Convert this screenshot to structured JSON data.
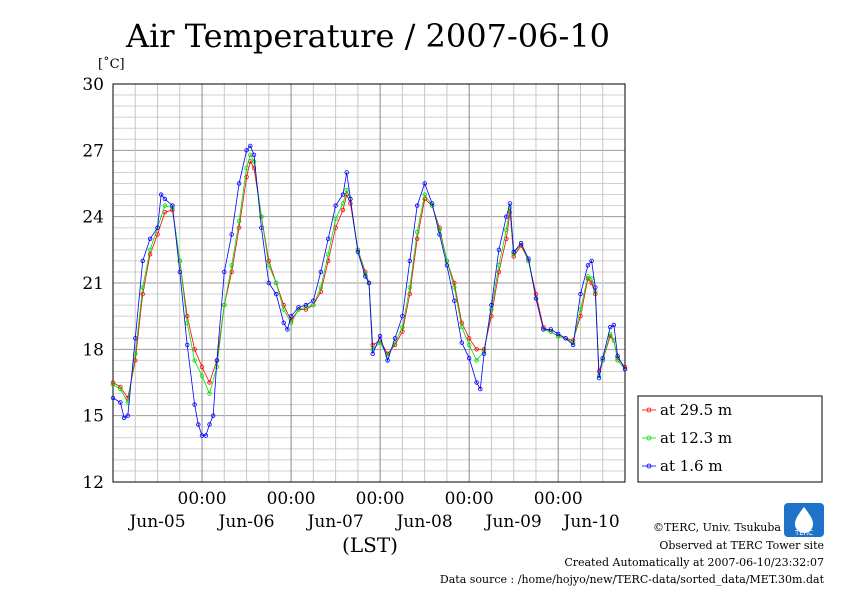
{
  "chart_data": {
    "type": "line",
    "title": "Air Temperature / 2007-06-10",
    "ylabel": "[˚C]",
    "xlabel": "(LST)",
    "ylim": [
      12,
      30
    ],
    "xlim": [
      0,
      138
    ],
    "y_ticks": [
      "30",
      "27",
      "24",
      "21",
      "18",
      "15",
      "12"
    ],
    "y_tick_values": [
      30,
      27,
      24,
      21,
      18,
      15,
      12
    ],
    "x_tick_positions": [
      24,
      48,
      72,
      96,
      120
    ],
    "x_time_labels": [
      "00:00",
      "00:00",
      "00:00",
      "00:00",
      "00:00"
    ],
    "x_day_labels": [
      "Jun-05",
      "Jun-06",
      "Jun-07",
      "Jun-08",
      "Jun-09",
      "Jun-10"
    ],
    "x_day_positions": [
      12,
      36,
      60,
      84,
      108,
      129
    ],
    "grid": true,
    "legend_position": "bottom-right outside",
    "series": [
      {
        "name": "at 29.5 m",
        "color": "#ff0000",
        "points": [
          [
            0,
            16.5
          ],
          [
            2,
            16.3
          ],
          [
            4,
            15.8
          ],
          [
            6,
            17.5
          ],
          [
            8,
            20.5
          ],
          [
            10,
            22.3
          ],
          [
            12,
            23.2
          ],
          [
            14,
            24.2
          ],
          [
            16,
            24.3
          ],
          [
            18,
            22.0
          ],
          [
            20,
            19.5
          ],
          [
            22,
            18.0
          ],
          [
            24,
            17.2
          ],
          [
            26,
            16.5
          ],
          [
            28,
            17.5
          ],
          [
            30,
            20.0
          ],
          [
            32,
            21.5
          ],
          [
            34,
            23.5
          ],
          [
            36,
            25.8
          ],
          [
            37,
            26.5
          ],
          [
            38,
            26.2
          ],
          [
            40,
            24.0
          ],
          [
            42,
            22.0
          ],
          [
            44,
            21.0
          ],
          [
            46,
            20.0
          ],
          [
            48,
            19.3
          ],
          [
            50,
            19.8
          ],
          [
            52,
            19.8
          ],
          [
            54,
            20.0
          ],
          [
            56,
            20.6
          ],
          [
            58,
            22.0
          ],
          [
            60,
            23.5
          ],
          [
            62,
            24.3
          ],
          [
            63,
            25.0
          ],
          [
            64,
            24.6
          ],
          [
            66,
            22.5
          ],
          [
            68,
            21.5
          ],
          [
            69,
            21.0
          ],
          [
            70,
            18.2
          ],
          [
            72,
            18.4
          ],
          [
            74,
            17.8
          ],
          [
            76,
            18.2
          ],
          [
            78,
            18.8
          ],
          [
            80,
            20.5
          ],
          [
            82,
            23.0
          ],
          [
            84,
            24.8
          ],
          [
            86,
            24.5
          ],
          [
            88,
            23.5
          ],
          [
            90,
            22.0
          ],
          [
            92,
            21.0
          ],
          [
            94,
            19.2
          ],
          [
            96,
            18.5
          ],
          [
            98,
            18.0
          ],
          [
            100,
            18.0
          ],
          [
            102,
            19.5
          ],
          [
            104,
            21.5
          ],
          [
            106,
            23.0
          ],
          [
            107,
            24.2
          ],
          [
            108,
            22.2
          ],
          [
            110,
            22.7
          ],
          [
            112,
            22.0
          ],
          [
            114,
            20.5
          ],
          [
            116,
            19.0
          ],
          [
            118,
            18.8
          ],
          [
            120,
            18.6
          ],
          [
            122,
            18.5
          ],
          [
            124,
            18.4
          ],
          [
            126,
            19.5
          ],
          [
            128,
            21.2
          ],
          [
            129,
            21.0
          ],
          [
            130,
            20.5
          ],
          [
            131,
            17.0
          ],
          [
            132,
            17.5
          ],
          [
            134,
            18.6
          ],
          [
            135,
            18.4
          ],
          [
            136,
            17.6
          ],
          [
            138,
            17.2
          ]
        ]
      },
      {
        "name": "at 12.3 m",
        "color": "#00dd00",
        "points": [
          [
            0,
            16.4
          ],
          [
            2,
            16.2
          ],
          [
            4,
            15.6
          ],
          [
            6,
            17.8
          ],
          [
            8,
            20.8
          ],
          [
            10,
            22.5
          ],
          [
            12,
            23.5
          ],
          [
            14,
            24.5
          ],
          [
            16,
            24.4
          ],
          [
            18,
            22.0
          ],
          [
            20,
            19.2
          ],
          [
            22,
            17.5
          ],
          [
            24,
            16.8
          ],
          [
            26,
            16.0
          ],
          [
            28,
            17.2
          ],
          [
            30,
            20.0
          ],
          [
            32,
            21.8
          ],
          [
            34,
            23.8
          ],
          [
            36,
            26.2
          ],
          [
            37,
            26.8
          ],
          [
            38,
            26.5
          ],
          [
            40,
            24.0
          ],
          [
            42,
            21.8
          ],
          [
            44,
            21.0
          ],
          [
            46,
            19.8
          ],
          [
            48,
            19.2
          ],
          [
            50,
            19.8
          ],
          [
            52,
            19.9
          ],
          [
            54,
            20.0
          ],
          [
            56,
            20.8
          ],
          [
            58,
            22.3
          ],
          [
            60,
            23.9
          ],
          [
            62,
            24.6
          ],
          [
            63,
            25.2
          ],
          [
            64,
            24.8
          ],
          [
            66,
            22.5
          ],
          [
            68,
            21.4
          ],
          [
            69,
            21.0
          ],
          [
            70,
            18.0
          ],
          [
            72,
            18.3
          ],
          [
            74,
            17.7
          ],
          [
            76,
            18.3
          ],
          [
            78,
            19.0
          ],
          [
            80,
            20.8
          ],
          [
            82,
            23.3
          ],
          [
            84,
            25.0
          ],
          [
            86,
            24.5
          ],
          [
            88,
            23.4
          ],
          [
            90,
            22.0
          ],
          [
            92,
            20.8
          ],
          [
            94,
            19.0
          ],
          [
            96,
            18.2
          ],
          [
            98,
            17.5
          ],
          [
            100,
            17.9
          ],
          [
            102,
            19.8
          ],
          [
            104,
            21.8
          ],
          [
            106,
            23.4
          ],
          [
            107,
            24.4
          ],
          [
            108,
            22.3
          ],
          [
            110,
            22.8
          ],
          [
            112,
            22.0
          ],
          [
            114,
            20.3
          ],
          [
            116,
            18.9
          ],
          [
            118,
            18.8
          ],
          [
            120,
            18.6
          ],
          [
            122,
            18.5
          ],
          [
            124,
            18.3
          ],
          [
            126,
            19.8
          ],
          [
            128,
            21.3
          ],
          [
            129,
            21.2
          ],
          [
            130,
            20.6
          ],
          [
            131,
            16.8
          ],
          [
            132,
            17.5
          ],
          [
            134,
            18.7
          ],
          [
            135,
            18.4
          ],
          [
            136,
            17.5
          ],
          [
            138,
            17.1
          ]
        ]
      },
      {
        "name": "at 1.6 m",
        "color": "#0000ff",
        "points": [
          [
            0,
            15.8
          ],
          [
            2,
            15.6
          ],
          [
            3,
            14.9
          ],
          [
            4,
            15.0
          ],
          [
            6,
            18.5
          ],
          [
            8,
            22.0
          ],
          [
            10,
            23.0
          ],
          [
            12,
            23.5
          ],
          [
            13,
            25.0
          ],
          [
            14,
            24.8
          ],
          [
            16,
            24.5
          ],
          [
            18,
            21.5
          ],
          [
            20,
            18.2
          ],
          [
            22,
            15.5
          ],
          [
            23,
            14.6
          ],
          [
            24,
            14.1
          ],
          [
            25,
            14.1
          ],
          [
            26,
            14.6
          ],
          [
            27,
            15.0
          ],
          [
            28,
            17.5
          ],
          [
            30,
            21.5
          ],
          [
            32,
            23.2
          ],
          [
            34,
            25.5
          ],
          [
            36,
            27.0
          ],
          [
            37,
            27.2
          ],
          [
            38,
            26.8
          ],
          [
            40,
            23.5
          ],
          [
            42,
            21.0
          ],
          [
            44,
            20.5
          ],
          [
            46,
            19.2
          ],
          [
            47,
            18.9
          ],
          [
            48,
            19.5
          ],
          [
            50,
            19.9
          ],
          [
            52,
            20.0
          ],
          [
            54,
            20.2
          ],
          [
            56,
            21.5
          ],
          [
            58,
            23.0
          ],
          [
            60,
            24.5
          ],
          [
            62,
            25.0
          ],
          [
            63,
            26.0
          ],
          [
            64,
            24.8
          ],
          [
            66,
            22.4
          ],
          [
            68,
            21.3
          ],
          [
            69,
            21.0
          ],
          [
            70,
            17.8
          ],
          [
            72,
            18.6
          ],
          [
            74,
            17.5
          ],
          [
            76,
            18.5
          ],
          [
            78,
            19.5
          ],
          [
            80,
            22.0
          ],
          [
            82,
            24.5
          ],
          [
            84,
            25.5
          ],
          [
            86,
            24.6
          ],
          [
            88,
            23.2
          ],
          [
            90,
            21.8
          ],
          [
            92,
            20.2
          ],
          [
            94,
            18.3
          ],
          [
            96,
            17.6
          ],
          [
            98,
            16.5
          ],
          [
            99,
            16.2
          ],
          [
            100,
            17.8
          ],
          [
            102,
            20.0
          ],
          [
            104,
            22.5
          ],
          [
            106,
            24.0
          ],
          [
            107,
            24.6
          ],
          [
            108,
            22.4
          ],
          [
            110,
            22.8
          ],
          [
            112,
            22.1
          ],
          [
            114,
            20.3
          ],
          [
            116,
            18.9
          ],
          [
            118,
            18.9
          ],
          [
            120,
            18.7
          ],
          [
            122,
            18.5
          ],
          [
            124,
            18.2
          ],
          [
            126,
            20.5
          ],
          [
            128,
            21.8
          ],
          [
            129,
            22.0
          ],
          [
            130,
            20.8
          ],
          [
            131,
            16.7
          ],
          [
            132,
            17.6
          ],
          [
            134,
            19.0
          ],
          [
            135,
            19.1
          ],
          [
            136,
            17.7
          ],
          [
            138,
            17.1
          ]
        ]
      }
    ]
  },
  "credits": {
    "copyright": "©TERC, Univ. Tsukuba",
    "site": "Observed at TERC Tower site",
    "created": "Created Automatically at 2007-06-10/23:32:07",
    "source": "Data source : /home/hojyo/new/TERC-data/sorted_data/MET.30m.dat",
    "logo_text": "TERC"
  }
}
